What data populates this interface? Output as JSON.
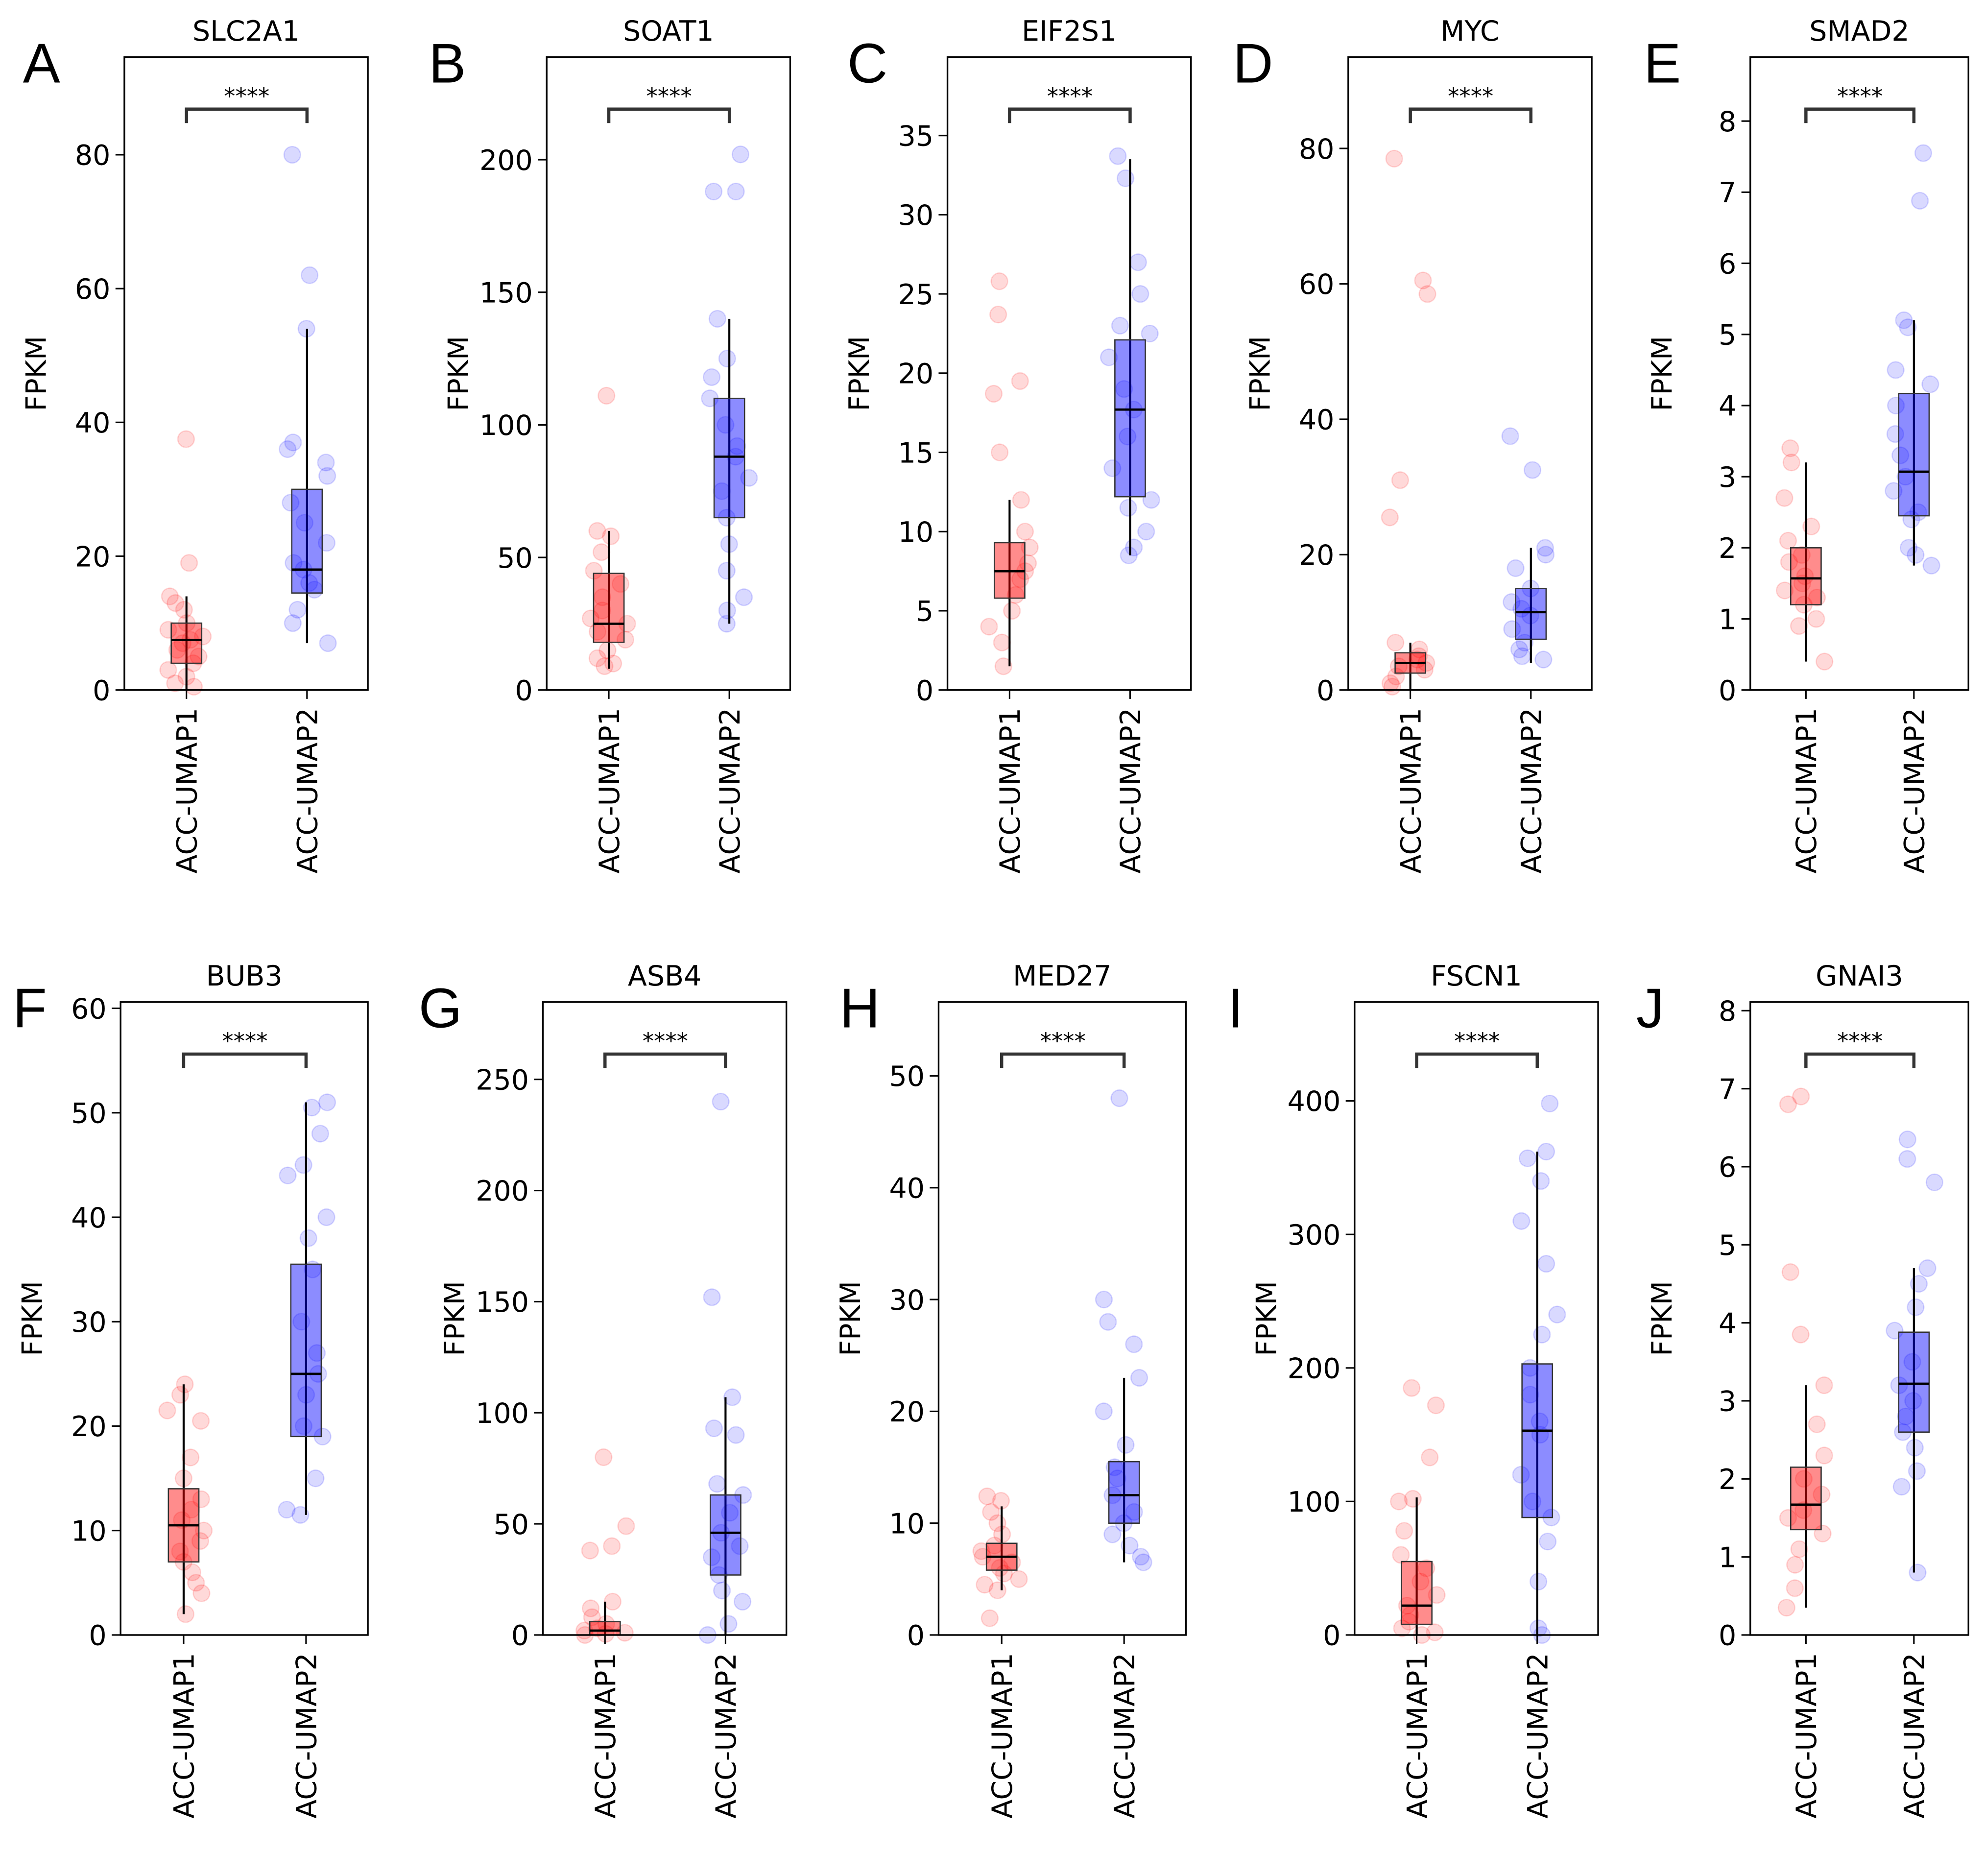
{
  "chart_data": [
    {
      "letter": "A",
      "type": "box",
      "title": "SLC2A1",
      "ylabel": "FPKM",
      "categories": [
        "ACC-UMAP1",
        "ACC-UMAP2"
      ],
      "ylim": [
        0,
        94.6
      ],
      "yticks": [
        0,
        20,
        40,
        60,
        80
      ],
      "significance": "****",
      "groups": [
        {
          "color": "#ff0000",
          "whisker_low": 0,
          "q1": 4,
          "median": 7.5,
          "q3": 10,
          "whisker_high": 14,
          "points": [
            37.5,
            19,
            14,
            13,
            12,
            10,
            9,
            8,
            7.5,
            7,
            6,
            5,
            4,
            3,
            2,
            1,
            0.5
          ]
        },
        {
          "color": "#0000ff",
          "whisker_low": 7,
          "q1": 14.5,
          "median": 18,
          "q3": 30,
          "whisker_high": 54,
          "points": [
            80,
            62,
            54,
            37,
            36,
            34,
            32,
            28,
            25,
            22,
            19,
            18,
            16,
            15,
            12,
            10,
            7
          ]
        }
      ]
    },
    {
      "letter": "B",
      "type": "box",
      "title": "SOAT1",
      "ylabel": "FPKM",
      "categories": [
        "ACC-UMAP1",
        "ACC-UMAP2"
      ],
      "ylim": [
        0,
        238.7
      ],
      "yticks": [
        0,
        50,
        100,
        150,
        200
      ],
      "significance": "****",
      "groups": [
        {
          "color": "#ff0000",
          "whisker_low": 8,
          "q1": 18,
          "median": 25,
          "q3": 44,
          "whisker_high": 60,
          "points": [
            111,
            60,
            58,
            52,
            45,
            40,
            35,
            30,
            27,
            25,
            22,
            19,
            15,
            12,
            10,
            9
          ]
        },
        {
          "color": "#0000ff",
          "whisker_low": 25,
          "q1": 65,
          "median": 88,
          "q3": 110,
          "whisker_high": 140,
          "points": [
            202,
            188,
            188,
            140,
            125,
            118,
            110,
            100,
            92,
            88,
            80,
            75,
            65,
            55,
            45,
            35,
            30,
            25
          ]
        }
      ]
    },
    {
      "letter": "C",
      "type": "box",
      "title": "EIF2S1",
      "ylabel": "FPKM",
      "categories": [
        "ACC-UMAP1",
        "ACC-UMAP2"
      ],
      "ylim": [
        0,
        39.95
      ],
      "yticks": [
        0,
        5,
        10,
        15,
        20,
        25,
        30,
        35
      ],
      "significance": "****",
      "groups": [
        {
          "color": "#ff0000",
          "whisker_low": 1.5,
          "q1": 5.8,
          "median": 7.5,
          "q3": 9.3,
          "whisker_high": 12,
          "points": [
            25.8,
            23.7,
            19.5,
            18.7,
            15,
            12,
            10,
            9,
            8,
            7.5,
            7,
            6,
            5,
            4,
            3,
            1.5
          ]
        },
        {
          "color": "#0000ff",
          "whisker_low": 8.5,
          "q1": 12.2,
          "median": 17.7,
          "q3": 22.1,
          "whisker_high": 33.5,
          "points": [
            33.7,
            32.3,
            27,
            25,
            23,
            22.5,
            21,
            19,
            17.7,
            16,
            14,
            12,
            11.5,
            10,
            9,
            8.5
          ]
        }
      ]
    },
    {
      "letter": "D",
      "type": "box",
      "title": "MYC",
      "ylabel": "FPKM",
      "categories": [
        "ACC-UMAP1",
        "ACC-UMAP2"
      ],
      "ylim": [
        0,
        93.5
      ],
      "yticks": [
        0,
        20,
        40,
        60,
        80
      ],
      "significance": "****",
      "groups": [
        {
          "color": "#ff0000",
          "whisker_low": 0,
          "q1": 2.5,
          "median": 4,
          "q3": 5.5,
          "whisker_high": 7,
          "points": [
            78.5,
            60.5,
            58.5,
            31,
            25.5,
            7,
            6,
            5,
            4.5,
            4,
            3.5,
            3,
            2,
            1,
            0.5
          ]
        },
        {
          "color": "#0000ff",
          "whisker_low": 4,
          "q1": 7.5,
          "median": 11.5,
          "q3": 15,
          "whisker_high": 21,
          "points": [
            37.5,
            32.5,
            21,
            20,
            18,
            15,
            13,
            12,
            11,
            9,
            7,
            6,
            5,
            4.5
          ]
        }
      ]
    },
    {
      "letter": "E",
      "type": "box",
      "title": "SMAD2",
      "ylabel": "FPKM",
      "categories": [
        "ACC-UMAP1",
        "ACC-UMAP2"
      ],
      "ylim": [
        0,
        8.9
      ],
      "yticks": [
        0,
        1,
        2,
        3,
        4,
        5,
        6,
        7,
        8
      ],
      "significance": "****",
      "groups": [
        {
          "color": "#ff0000",
          "whisker_low": 0.4,
          "q1": 1.2,
          "median": 1.57,
          "q3": 2.0,
          "whisker_high": 3.2,
          "points": [
            3.4,
            3.2,
            2.7,
            2.3,
            2.1,
            1.9,
            1.8,
            1.6,
            1.5,
            1.4,
            1.3,
            1.2,
            1.0,
            0.9,
            0.4
          ]
        },
        {
          "color": "#0000ff",
          "whisker_low": 1.75,
          "q1": 2.45,
          "median": 3.07,
          "q3": 4.17,
          "whisker_high": 5.2,
          "points": [
            7.55,
            6.88,
            5.2,
            5.1,
            4.5,
            4.3,
            4.0,
            3.6,
            3.3,
            3.0,
            2.8,
            2.5,
            2.4,
            2.0,
            1.9,
            1.75
          ]
        }
      ]
    },
    {
      "letter": "F",
      "type": "box",
      "title": "BUB3",
      "ylabel": "FPKM",
      "categories": [
        "ACC-UMAP1",
        "ACC-UMAP2"
      ],
      "ylim": [
        0,
        60.6
      ],
      "yticks": [
        0,
        10,
        20,
        30,
        40,
        50,
        60
      ],
      "significance": "****",
      "groups": [
        {
          "color": "#ff0000",
          "whisker_low": 2,
          "q1": 7,
          "median": 10.5,
          "q3": 14,
          "whisker_high": 24,
          "points": [
            24,
            23,
            21.5,
            20.5,
            17,
            15,
            13,
            12,
            11,
            10,
            9,
            8,
            7,
            6,
            5,
            4,
            2
          ]
        },
        {
          "color": "#0000ff",
          "whisker_low": 11.5,
          "q1": 19,
          "median": 25,
          "q3": 35.5,
          "whisker_high": 51,
          "points": [
            51,
            50.5,
            48,
            45,
            44,
            40,
            38,
            35,
            30,
            27,
            25,
            23,
            20,
            19,
            15,
            12,
            11.5
          ]
        }
      ]
    },
    {
      "letter": "G",
      "type": "box",
      "title": "ASB4",
      "ylabel": "FPKM",
      "categories": [
        "ACC-UMAP1",
        "ACC-UMAP2"
      ],
      "ylim": [
        0,
        284.8
      ],
      "yticks": [
        0,
        50,
        100,
        150,
        200,
        250
      ],
      "significance": "****",
      "groups": [
        {
          "color": "#ff0000",
          "whisker_low": 0,
          "q1": 0,
          "median": 2,
          "q3": 6,
          "whisker_high": 15,
          "points": [
            80,
            49,
            40,
            38,
            15,
            12,
            8,
            5,
            3,
            2,
            1,
            0.5,
            0
          ]
        },
        {
          "color": "#0000ff",
          "whisker_low": 0,
          "q1": 27,
          "median": 46,
          "q3": 63,
          "whisker_high": 107,
          "points": [
            240,
            152,
            107,
            93,
            90,
            68,
            63,
            55,
            46,
            40,
            35,
            27,
            20,
            15,
            5,
            0
          ]
        }
      ]
    },
    {
      "letter": "H",
      "type": "box",
      "title": "MED27",
      "ylabel": "FPKM",
      "categories": [
        "ACC-UMAP1",
        "ACC-UMAP2"
      ],
      "ylim": [
        0,
        56.6
      ],
      "yticks": [
        0,
        10,
        20,
        30,
        40,
        50
      ],
      "significance": "****",
      "groups": [
        {
          "color": "#ff0000",
          "whisker_low": 4,
          "q1": 5.8,
          "median": 7,
          "q3": 8.2,
          "whisker_high": 11.5,
          "points": [
            12.4,
            12,
            11,
            10,
            9,
            8,
            7.5,
            7,
            6.5,
            6,
            5.5,
            5,
            4.5,
            4,
            1.5
          ]
        },
        {
          "color": "#0000ff",
          "whisker_low": 6.5,
          "q1": 10,
          "median": 12.5,
          "q3": 15.5,
          "whisker_high": 23,
          "points": [
            48,
            30,
            28,
            26,
            23,
            20,
            17,
            15,
            14,
            12.5,
            11,
            10,
            9,
            8,
            7,
            6.5
          ]
        }
      ]
    },
    {
      "letter": "I",
      "type": "box",
      "title": "FSCN1",
      "ylabel": "FPKM",
      "categories": [
        "ACC-UMAP1",
        "ACC-UMAP2"
      ],
      "ylim": [
        0,
        474
      ],
      "yticks": [
        0,
        100,
        200,
        300,
        400
      ],
      "significance": "****",
      "groups": [
        {
          "color": "#ff0000",
          "whisker_low": 0,
          "q1": 8,
          "median": 22,
          "q3": 55,
          "whisker_high": 103,
          "points": [
            185,
            172,
            133,
            102,
            100,
            78,
            60,
            50,
            40,
            30,
            22,
            15,
            10,
            5,
            2,
            0
          ]
        },
        {
          "color": "#0000ff",
          "whisker_low": 0,
          "q1": 88,
          "median": 153,
          "q3": 203,
          "whisker_high": 362,
          "points": [
            398,
            362,
            357,
            340,
            310,
            278,
            240,
            225,
            200,
            180,
            160,
            150,
            120,
            100,
            88,
            70,
            40,
            5,
            0
          ]
        }
      ]
    },
    {
      "letter": "J",
      "type": "box",
      "title": "GNAI3",
      "ylabel": "FPKM",
      "categories": [
        "ACC-UMAP1",
        "ACC-UMAP2"
      ],
      "ylim": [
        0,
        8.11
      ],
      "yticks": [
        0,
        1,
        2,
        3,
        4,
        5,
        6,
        7,
        8
      ],
      "significance": "****",
      "groups": [
        {
          "color": "#ff0000",
          "whisker_low": 0.35,
          "q1": 1.35,
          "median": 1.67,
          "q3": 2.15,
          "whisker_high": 3.2,
          "points": [
            6.9,
            6.8,
            4.65,
            3.85,
            3.2,
            2.7,
            2.3,
            2.0,
            1.8,
            1.6,
            1.5,
            1.3,
            1.1,
            0.9,
            0.6,
            0.35
          ]
        },
        {
          "color": "#0000ff",
          "whisker_low": 0.8,
          "q1": 2.6,
          "median": 3.22,
          "q3": 3.88,
          "whisker_high": 4.7,
          "points": [
            6.35,
            6.1,
            5.8,
            4.7,
            4.5,
            4.2,
            3.9,
            3.5,
            3.2,
            3.0,
            2.8,
            2.6,
            2.4,
            2.1,
            1.9,
            0.8
          ]
        }
      ]
    }
  ]
}
